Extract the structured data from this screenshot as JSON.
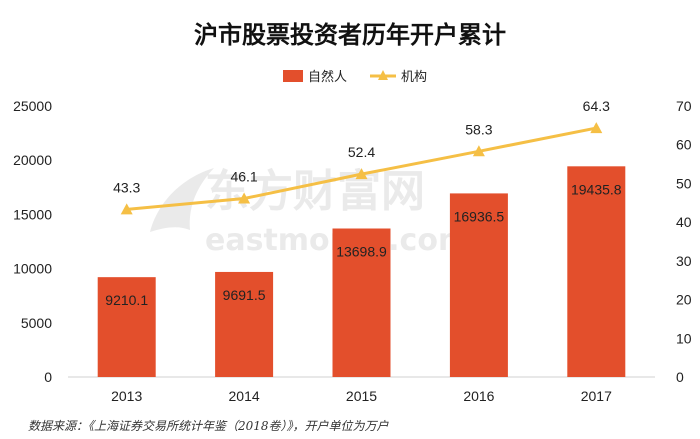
{
  "watermark": {
    "brand": "东方财富网",
    "domain": "eastmoney.com"
  },
  "colors": {
    "bar": "#e34f2c",
    "line": "#f5bf45",
    "axis": "#d0d0d0",
    "watermark": "#d9d9d9"
  },
  "chart_data": {
    "type": "bar",
    "title": "沪市股票投资者历年开户累计",
    "categories": [
      "2013",
      "2014",
      "2015",
      "2016",
      "2017"
    ],
    "series": [
      {
        "name": "自然人",
        "type": "bar",
        "axis": "left",
        "values": [
          9210.1,
          9691.5,
          13698.9,
          16936.5,
          19435.8
        ],
        "labels": [
          "9210.1",
          "9691.5",
          "13698.9",
          "16936.5",
          "19435.8"
        ]
      },
      {
        "name": "机构",
        "type": "line",
        "axis": "right",
        "marker": "triangle",
        "values": [
          43.3,
          46.1,
          52.4,
          58.3,
          64.3
        ],
        "labels": [
          "43.3",
          "46.1",
          "52.4",
          "58.3",
          "64.3"
        ]
      }
    ],
    "y_left": {
      "min": 0,
      "max": 25000,
      "ticks": [
        0,
        5000,
        10000,
        15000,
        20000,
        25000
      ],
      "tick_labels": [
        "0",
        "5000",
        "10000",
        "15000",
        "20000",
        "25000"
      ]
    },
    "y_right": {
      "min": 0,
      "max": 70,
      "ticks": [
        0,
        10,
        20,
        30,
        40,
        50,
        60,
        70
      ],
      "tick_labels": [
        "0",
        "10",
        "20",
        "30",
        "40",
        "50",
        "60",
        "70"
      ]
    },
    "legend": {
      "position": "top-center"
    },
    "grid": false,
    "source": "数据来源：《上海证券交易所统计年鉴（2018卷）》，开户单位为万户"
  }
}
